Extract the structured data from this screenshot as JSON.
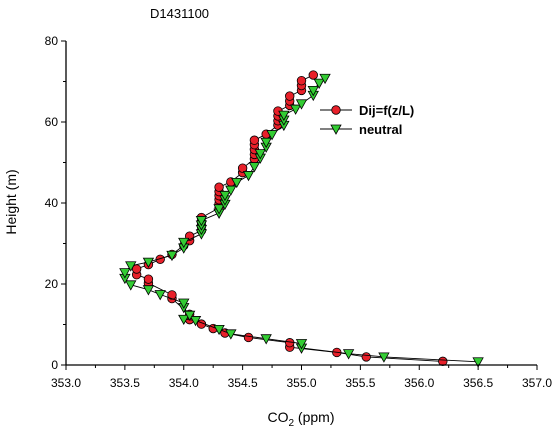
{
  "chart_data": {
    "type": "line",
    "title": "D1431100",
    "xlabel": "CO2 (ppm)",
    "xlabel_main": "CO",
    "xlabel_sub": "2",
    "xlabel_unit": " (ppm)",
    "ylabel": "Height (m)",
    "xlim": [
      353.0,
      357.0
    ],
    "ylim": [
      0,
      80
    ],
    "xticks": [
      353.0,
      353.5,
      354.0,
      354.5,
      355.0,
      355.5,
      356.0,
      356.5,
      357.0
    ],
    "xtick_labels": [
      "353.0",
      "353.5",
      "354.0",
      "354.5",
      "355.0",
      "355.5",
      "356.0",
      "356.5",
      "357.0"
    ],
    "yticks": [
      0,
      20,
      40,
      60,
      80
    ],
    "ytick_labels": [
      "0",
      "20",
      "40",
      "60",
      "80"
    ],
    "grid": false,
    "legend_position": "top-right",
    "series": [
      {
        "name": "Dij=f(z/L)",
        "marker": "circle",
        "color": "#e8202a",
        "points": [
          [
            356.2,
            0.9
          ],
          [
            355.55,
            2.0
          ],
          [
            355.3,
            3.1
          ],
          [
            354.9,
            4.4
          ],
          [
            354.9,
            5.5
          ],
          [
            354.55,
            6.8
          ],
          [
            354.35,
            7.9
          ],
          [
            354.25,
            9.0
          ],
          [
            354.15,
            10.1
          ],
          [
            354.05,
            11.2
          ],
          [
            354.05,
            12.5
          ],
          [
            353.9,
            16.4
          ],
          [
            353.9,
            17.3
          ],
          [
            353.7,
            20.2
          ],
          [
            353.7,
            21.2
          ],
          [
            353.6,
            22.3
          ],
          [
            353.6,
            23.7
          ],
          [
            353.7,
            24.8
          ],
          [
            353.8,
            26.1
          ],
          [
            353.9,
            27.3
          ],
          [
            354.0,
            29.5
          ],
          [
            354.05,
            30.7
          ],
          [
            354.05,
            31.8
          ],
          [
            354.15,
            33.2
          ],
          [
            354.15,
            34.3
          ],
          [
            354.15,
            35.3
          ],
          [
            354.15,
            36.4
          ],
          [
            354.3,
            38.8
          ],
          [
            354.3,
            39.8
          ],
          [
            354.3,
            40.8
          ],
          [
            354.3,
            41.8
          ],
          [
            354.3,
            42.8
          ],
          [
            354.3,
            43.9
          ],
          [
            354.4,
            45.2
          ],
          [
            354.5,
            47.5
          ],
          [
            354.5,
            48.6
          ],
          [
            354.6,
            50.9
          ],
          [
            354.6,
            52.0
          ],
          [
            354.6,
            53.2
          ],
          [
            354.6,
            54.4
          ],
          [
            354.6,
            55.5
          ],
          [
            354.7,
            57.0
          ],
          [
            354.8,
            59.2
          ],
          [
            354.8,
            60.3
          ],
          [
            354.8,
            61.5
          ],
          [
            354.8,
            62.7
          ],
          [
            354.9,
            64.1
          ],
          [
            354.9,
            65.2
          ],
          [
            354.9,
            66.4
          ],
          [
            355.0,
            67.8
          ],
          [
            355.0,
            69.0
          ],
          [
            355.0,
            70.2
          ],
          [
            355.1,
            71.6
          ]
        ]
      },
      {
        "name": "neutral",
        "marker": "triangle-down",
        "color": "#33cc33",
        "points": [
          [
            356.5,
            0.8
          ],
          [
            355.7,
            2.0
          ],
          [
            355.4,
            2.8
          ],
          [
            355.0,
            4.2
          ],
          [
            355.0,
            5.3
          ],
          [
            354.7,
            6.5
          ],
          [
            354.4,
            7.7
          ],
          [
            354.3,
            8.8
          ],
          [
            354.1,
            11.0
          ],
          [
            354.0,
            11.3
          ],
          [
            354.05,
            12.3
          ],
          [
            354.0,
            14.2
          ],
          [
            354.0,
            15.3
          ],
          [
            353.8,
            17.4
          ],
          [
            353.7,
            18.6
          ],
          [
            353.55,
            19.8
          ],
          [
            353.5,
            21.4
          ],
          [
            353.5,
            22.8
          ],
          [
            353.55,
            24.5
          ],
          [
            353.7,
            25.4
          ],
          [
            353.9,
            27.1
          ],
          [
            354.0,
            28.9
          ],
          [
            354.0,
            30.3
          ],
          [
            354.15,
            32.4
          ],
          [
            354.15,
            33.5
          ],
          [
            354.15,
            34.6
          ],
          [
            354.15,
            35.7
          ],
          [
            354.3,
            37.5
          ],
          [
            354.3,
            38.6
          ],
          [
            354.35,
            39.7
          ],
          [
            354.35,
            40.8
          ],
          [
            354.35,
            41.9
          ],
          [
            354.4,
            43.2
          ],
          [
            354.45,
            45.1
          ],
          [
            354.55,
            46.8
          ],
          [
            354.6,
            49.0
          ],
          [
            354.65,
            51.1
          ],
          [
            354.65,
            52.2
          ],
          [
            354.7,
            53.8
          ],
          [
            354.7,
            55.0
          ],
          [
            354.75,
            56.9
          ],
          [
            354.85,
            59.2
          ],
          [
            354.85,
            60.5
          ],
          [
            354.85,
            61.7
          ],
          [
            354.95,
            63.2
          ],
          [
            355.0,
            64.5
          ],
          [
            355.1,
            66.6
          ],
          [
            355.1,
            67.8
          ],
          [
            355.15,
            69.6
          ],
          [
            355.2,
            70.8
          ]
        ]
      }
    ]
  }
}
